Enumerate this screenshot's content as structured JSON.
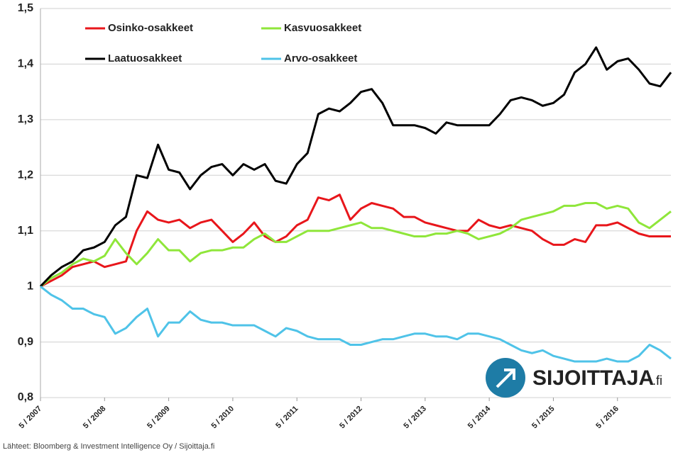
{
  "chart_data": {
    "type": "line",
    "categories": [
      "5 / 2007",
      null,
      null,
      null,
      null,
      null,
      "5 / 2008",
      null,
      null,
      null,
      null,
      null,
      "5 / 2009",
      null,
      null,
      null,
      null,
      null,
      "5 / 2010",
      null,
      null,
      null,
      null,
      null,
      "5 / 2011",
      null,
      null,
      null,
      null,
      null,
      "5 / 2012",
      null,
      null,
      null,
      null,
      null,
      "5 / 2013",
      null,
      null,
      null,
      null,
      null,
      "5 / 2014",
      null,
      null,
      null,
      null,
      null,
      "5 / 2015",
      null,
      null,
      null,
      null,
      null,
      "5 / 2016",
      null,
      null,
      null,
      null,
      null
    ],
    "series": [
      {
        "name": "Osinko-osakkeet",
        "color": "#e8161b",
        "values": [
          1.0,
          1.01,
          1.02,
          1.035,
          1.04,
          1.045,
          1.035,
          1.04,
          1.045,
          1.1,
          1.135,
          1.12,
          1.115,
          1.12,
          1.105,
          1.115,
          1.12,
          1.1,
          1.08,
          1.095,
          1.115,
          1.09,
          1.08,
          1.09,
          1.11,
          1.12,
          1.16,
          1.155,
          1.165,
          1.12,
          1.14,
          1.15,
          1.145,
          1.14,
          1.125,
          1.125,
          1.115,
          1.11,
          1.105,
          1.1,
          1.1,
          1.12,
          1.11,
          1.105,
          1.11,
          1.105,
          1.1,
          1.085,
          1.075,
          1.075,
          1.085,
          1.08,
          1.11,
          1.11,
          1.115,
          1.105,
          1.095,
          1.09,
          1.09,
          1.09
        ]
      },
      {
        "name": "Kasvuosakkeet",
        "color": "#8fe63a",
        "values": [
          1.0,
          1.015,
          1.025,
          1.04,
          1.05,
          1.045,
          1.055,
          1.085,
          1.06,
          1.04,
          1.06,
          1.085,
          1.065,
          1.065,
          1.045,
          1.06,
          1.065,
          1.065,
          1.07,
          1.07,
          1.085,
          1.095,
          1.08,
          1.08,
          1.09,
          1.1,
          1.1,
          1.1,
          1.105,
          1.11,
          1.115,
          1.105,
          1.105,
          1.1,
          1.095,
          1.09,
          1.09,
          1.095,
          1.095,
          1.1,
          1.095,
          1.085,
          1.09,
          1.095,
          1.105,
          1.12,
          1.125,
          1.13,
          1.135,
          1.145,
          1.145,
          1.15,
          1.15,
          1.14,
          1.145,
          1.14,
          1.115,
          1.105,
          1.12,
          1.135
        ]
      },
      {
        "name": "Laatuosakkeet",
        "color": "#000000",
        "values": [
          1.0,
          1.02,
          1.035,
          1.045,
          1.065,
          1.07,
          1.08,
          1.11,
          1.125,
          1.2,
          1.195,
          1.255,
          1.21,
          1.205,
          1.175,
          1.2,
          1.215,
          1.22,
          1.2,
          1.22,
          1.21,
          1.22,
          1.19,
          1.185,
          1.22,
          1.24,
          1.31,
          1.32,
          1.315,
          1.33,
          1.35,
          1.355,
          1.33,
          1.29,
          1.29,
          1.29,
          1.285,
          1.275,
          1.295,
          1.29,
          1.29,
          1.29,
          1.29,
          1.31,
          1.335,
          1.34,
          1.335,
          1.325,
          1.33,
          1.345,
          1.385,
          1.4,
          1.43,
          1.39,
          1.405,
          1.41,
          1.39,
          1.365,
          1.36,
          1.385
        ]
      },
      {
        "name": "Arvo-osakkeet",
        "color": "#4fc3e8",
        "values": [
          1.0,
          0.985,
          0.975,
          0.96,
          0.96,
          0.95,
          0.945,
          0.915,
          0.925,
          0.945,
          0.96,
          0.91,
          0.935,
          0.935,
          0.955,
          0.94,
          0.935,
          0.935,
          0.93,
          0.93,
          0.93,
          0.92,
          0.91,
          0.925,
          0.92,
          0.91,
          0.905,
          0.905,
          0.905,
          0.895,
          0.895,
          0.9,
          0.905,
          0.905,
          0.91,
          0.915,
          0.915,
          0.91,
          0.91,
          0.905,
          0.915,
          0.915,
          0.91,
          0.905,
          0.895,
          0.885,
          0.88,
          0.885,
          0.875,
          0.87,
          0.865,
          0.865,
          0.865,
          0.87,
          0.865,
          0.865,
          0.875,
          0.895,
          0.885,
          0.87
        ]
      }
    ],
    "ylim": [
      0.8,
      1.5
    ],
    "yticks": [
      {
        "value": 0.8,
        "label": "0,8"
      },
      {
        "value": 0.9,
        "label": "0,9"
      },
      1,
      {
        "value": 1.1,
        "label": "1,1"
      },
      {
        "value": 1.2,
        "label": "1,2"
      },
      {
        "value": 1.3,
        "label": "1,3"
      },
      {
        "value": 1.4,
        "label": "1,4"
      },
      {
        "value": 1.5,
        "label": "1,5"
      }
    ],
    "grid": true,
    "legend": "top"
  },
  "source": "Lähteet: Bloomberg & Investment Intelligence Oy / Sijoittaja.fi",
  "logo": {
    "name": "SIJOITTAJA",
    "suffix": ".fi"
  }
}
